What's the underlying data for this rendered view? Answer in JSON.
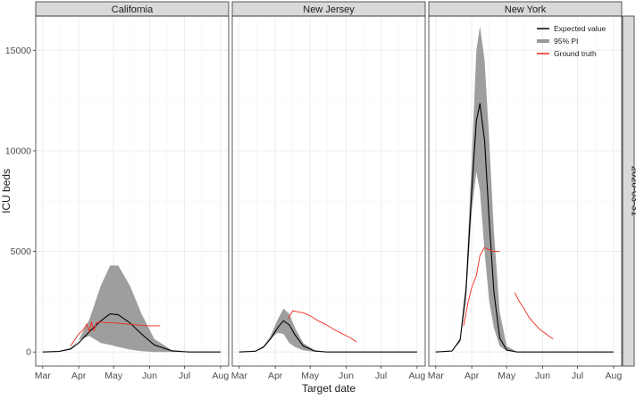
{
  "figure": {
    "ylabel": "ICU beds",
    "xlabel": "Target date",
    "strip_right": "2020-03-31"
  },
  "legend": {
    "expected": "Expected value",
    "pi": "95% PI",
    "truth": "Ground truth"
  },
  "colors": {
    "expected": "#000000",
    "pi": "#999999",
    "truth": "#f0281e",
    "strip": "#d9d9d9",
    "grid_major": "#ebebeb",
    "grid_minor": "#f5f5f5"
  },
  "chart_data": [
    {
      "type": "area",
      "title": "California",
      "x_ticks": [
        "Mar",
        "Apr",
        "May",
        "Jun",
        "Jul",
        "Aug"
      ],
      "y_ticks": [
        0,
        5000,
        10000,
        15000
      ],
      "ylim": [
        -700,
        16700
      ],
      "xlim": [
        "2020-02-24",
        "2020-08-08"
      ],
      "series": [
        {
          "name": "Expected value",
          "kind": "line",
          "x": [
            "2020-03-01",
            "2020-03-15",
            "2020-03-25",
            "2020-04-01",
            "2020-04-10",
            "2020-04-20",
            "2020-04-28",
            "2020-05-05",
            "2020-05-15",
            "2020-05-25",
            "2020-06-05",
            "2020-06-20",
            "2020-07-05",
            "2020-07-20",
            "2020-08-01"
          ],
          "y": [
            0,
            30,
            150,
            450,
            1000,
            1550,
            1900,
            1850,
            1450,
            900,
            350,
            60,
            0,
            0,
            0
          ]
        },
        {
          "name": "95% PI",
          "kind": "band",
          "x": [
            "2020-03-01",
            "2020-03-15",
            "2020-03-25",
            "2020-04-01",
            "2020-04-10",
            "2020-04-20",
            "2020-04-28",
            "2020-05-05",
            "2020-05-15",
            "2020-05-25",
            "2020-06-05",
            "2020-06-20",
            "2020-07-05",
            "2020-07-20",
            "2020-08-01"
          ],
          "lower": [
            0,
            10,
            120,
            600,
            800,
            450,
            350,
            250,
            120,
            40,
            0,
            0,
            0,
            0,
            0
          ],
          "upper": [
            0,
            40,
            200,
            600,
            1600,
            3300,
            4300,
            4300,
            3300,
            1900,
            650,
            100,
            0,
            0,
            0
          ]
        },
        {
          "name": "Ground truth",
          "kind": "line",
          "x": [
            "2020-03-25",
            "2020-04-01",
            "2020-04-05",
            "2020-04-08",
            "2020-04-10",
            "2020-04-12",
            "2020-04-14",
            "2020-04-16",
            "2020-04-20",
            "2020-04-25",
            "2020-05-01",
            "2020-05-10",
            "2020-05-20",
            "2020-05-30",
            "2020-06-10"
          ],
          "y": [
            300,
            900,
            1100,
            1400,
            1000,
            1500,
            1050,
            1450,
            1500,
            1450,
            1450,
            1400,
            1350,
            1300,
            1300
          ]
        }
      ]
    },
    {
      "type": "area",
      "title": "New Jersey",
      "x_ticks": [
        "Mar",
        "Apr",
        "May",
        "Jun",
        "Jul",
        "Aug"
      ],
      "y_ticks": [
        0,
        5000,
        10000,
        15000
      ],
      "ylim": [
        -700,
        16700
      ],
      "xlim": [
        "2020-02-24",
        "2020-08-08"
      ],
      "series": [
        {
          "name": "Expected value",
          "kind": "line",
          "x": [
            "2020-03-01",
            "2020-03-15",
            "2020-03-22",
            "2020-03-28",
            "2020-04-03",
            "2020-04-08",
            "2020-04-13",
            "2020-04-18",
            "2020-04-25",
            "2020-05-05",
            "2020-05-15",
            "2020-06-01",
            "2020-07-01",
            "2020-08-01"
          ],
          "y": [
            0,
            40,
            250,
            650,
            1200,
            1550,
            1350,
            850,
            300,
            50,
            0,
            0,
            0,
            0
          ]
        },
        {
          "name": "95% PI",
          "kind": "band",
          "x": [
            "2020-03-01",
            "2020-03-15",
            "2020-03-22",
            "2020-03-28",
            "2020-04-03",
            "2020-04-08",
            "2020-04-13",
            "2020-04-18",
            "2020-04-25",
            "2020-05-05",
            "2020-05-15",
            "2020-06-01",
            "2020-07-01",
            "2020-08-01"
          ],
          "lower": [
            0,
            30,
            200,
            650,
            950,
            900,
            450,
            250,
            80,
            10,
            0,
            0,
            0,
            0
          ],
          "upper": [
            0,
            50,
            300,
            800,
            1600,
            2150,
            1900,
            1200,
            450,
            80,
            0,
            0,
            0,
            0
          ]
        },
        {
          "name": "Ground truth",
          "kind": "line",
          "x": [
            "2020-04-12",
            "2020-04-16",
            "2020-04-20",
            "2020-04-25",
            "2020-05-01",
            "2020-05-08",
            "2020-05-15",
            "2020-05-22",
            "2020-05-29",
            "2020-06-05",
            "2020-06-10"
          ],
          "y": [
            1650,
            2050,
            2000,
            1950,
            1800,
            1550,
            1350,
            1100,
            900,
            700,
            500
          ]
        }
      ]
    },
    {
      "type": "area",
      "title": "New York",
      "x_ticks": [
        "Mar",
        "Apr",
        "May",
        "Jun",
        "Jul",
        "Aug"
      ],
      "y_ticks": [
        0,
        5000,
        10000,
        15000
      ],
      "ylim": [
        -700,
        16700
      ],
      "xlim": [
        "2020-02-24",
        "2020-08-08"
      ],
      "series": [
        {
          "name": "Expected value",
          "kind": "line",
          "x": [
            "2020-03-01",
            "2020-03-15",
            "2020-03-22",
            "2020-03-27",
            "2020-04-01",
            "2020-04-05",
            "2020-04-08",
            "2020-04-12",
            "2020-04-16",
            "2020-04-20",
            "2020-04-25",
            "2020-05-01",
            "2020-05-10",
            "2020-06-01",
            "2020-07-01",
            "2020-08-01"
          ],
          "y": [
            0,
            50,
            600,
            3000,
            8000,
            11500,
            12350,
            10500,
            6500,
            3000,
            700,
            100,
            0,
            0,
            0,
            0
          ]
        },
        {
          "name": "95% PI",
          "kind": "band",
          "x": [
            "2020-03-01",
            "2020-03-15",
            "2020-03-22",
            "2020-03-27",
            "2020-04-01",
            "2020-04-05",
            "2020-04-08",
            "2020-04-12",
            "2020-04-16",
            "2020-04-20",
            "2020-04-25",
            "2020-05-01",
            "2020-05-10",
            "2020-06-01",
            "2020-07-01",
            "2020-08-01"
          ],
          "lower": [
            0,
            40,
            500,
            2500,
            7000,
            8950,
            8000,
            5000,
            2500,
            1200,
            300,
            50,
            0,
            0,
            0,
            0
          ],
          "upper": [
            0,
            60,
            700,
            3500,
            9500,
            15000,
            16200,
            14500,
            10500,
            6000,
            2000,
            300,
            0,
            0,
            0,
            0
          ]
        },
        {
          "name": "Ground truth",
          "kind": "line",
          "x": [
            "2020-03-25",
            "2020-03-29",
            "2020-04-01",
            "2020-04-05",
            "2020-04-08",
            "2020-04-12",
            "2020-04-15",
            "2020-04-20",
            "2020-04-25"
          ],
          "y": [
            1300,
            2500,
            3200,
            3800,
            4800,
            5200,
            5100,
            5000,
            5000
          ]
        },
        {
          "name": "Ground truth",
          "kind": "line",
          "x": [
            "2020-05-08",
            "2020-05-12",
            "2020-05-16",
            "2020-05-20",
            "2020-05-25",
            "2020-05-30",
            "2020-06-05",
            "2020-06-10"
          ],
          "y": [
            2950,
            2500,
            2150,
            1750,
            1400,
            1100,
            850,
            650
          ]
        }
      ]
    }
  ]
}
